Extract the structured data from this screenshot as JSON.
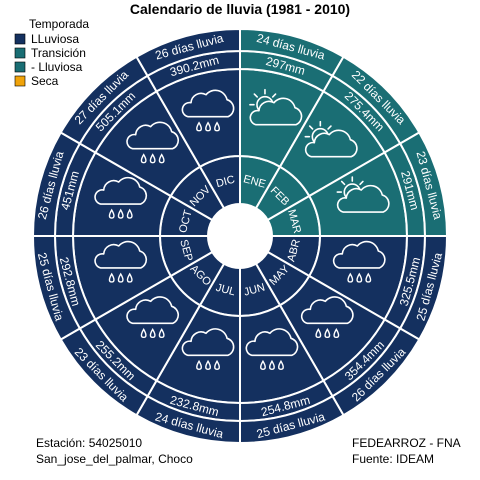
{
  "chart_data": {
    "type": "radial-calendar",
    "title": "Calendario de lluvia (1981 - 2010)",
    "legend": {
      "title": "Temporada",
      "placement": "top-left",
      "entries": [
        {
          "name": "LLuviosa",
          "color": "#14305f"
        },
        {
          "name": "Transición",
          "color": "#1a6e74"
        },
        {
          "name": "- Lluviosa",
          "color": "#1a6e74"
        },
        {
          "name": "Seca",
          "color": "#f0a30a"
        }
      ]
    },
    "months": [
      {
        "month": "ENE",
        "precip": "297mm",
        "rain_days": "24 días lluvia",
        "season": "- Lluviosa",
        "icon": "sun-cloud-icon"
      },
      {
        "month": "FEB",
        "precip": "275.4mm",
        "rain_days": "22 días lluvia",
        "season": "- Lluviosa",
        "icon": "sun-cloud-icon"
      },
      {
        "month": "MAR",
        "precip": "291mm",
        "rain_days": "23 días lluvia",
        "season": "- Lluviosa",
        "icon": "sun-cloud-icon"
      },
      {
        "month": "ABR",
        "precip": "325.5mm",
        "rain_days": "25 días lluvia",
        "season": "LLuviosa",
        "icon": "rain-cloud-icon"
      },
      {
        "month": "MAY",
        "precip": "354.4mm",
        "rain_days": "26 días lluvia",
        "season": "LLuviosa",
        "icon": "rain-cloud-icon"
      },
      {
        "month": "JUN",
        "precip": "254.8mm",
        "rain_days": "25 días lluvia",
        "season": "LLuviosa",
        "icon": "rain-cloud-icon"
      },
      {
        "month": "JUL",
        "precip": "232.8mm",
        "rain_days": "24 días lluvia",
        "season": "LLuviosa",
        "icon": "rain-cloud-icon"
      },
      {
        "month": "AGO",
        "precip": "255.2mm",
        "rain_days": "23 días lluvia",
        "season": "LLuviosa",
        "icon": "rain-cloud-icon"
      },
      {
        "month": "SEP",
        "precip": "292.8mm",
        "rain_days": "25 días lluvia",
        "season": "LLuviosa",
        "icon": "rain-cloud-icon"
      },
      {
        "month": "OCT",
        "precip": "451mm",
        "rain_days": "26 días lluvia",
        "season": "LLuviosa",
        "icon": "rain-cloud-icon"
      },
      {
        "month": "NOV",
        "precip": "505.1mm",
        "rain_days": "27 días lluvia",
        "season": "LLuviosa",
        "icon": "rain-cloud-icon"
      },
      {
        "month": "DIC",
        "precip": "390.2mm",
        "rain_days": "26 días lluvia",
        "season": "LLuviosa",
        "icon": "rain-cloud-icon"
      }
    ]
  },
  "footer": {
    "station": "Estación: 54025010",
    "location": "San_jose_del_palmar, Choco",
    "org": "FEDEARROZ - FNA",
    "source": "Fuente: IDEAM"
  }
}
